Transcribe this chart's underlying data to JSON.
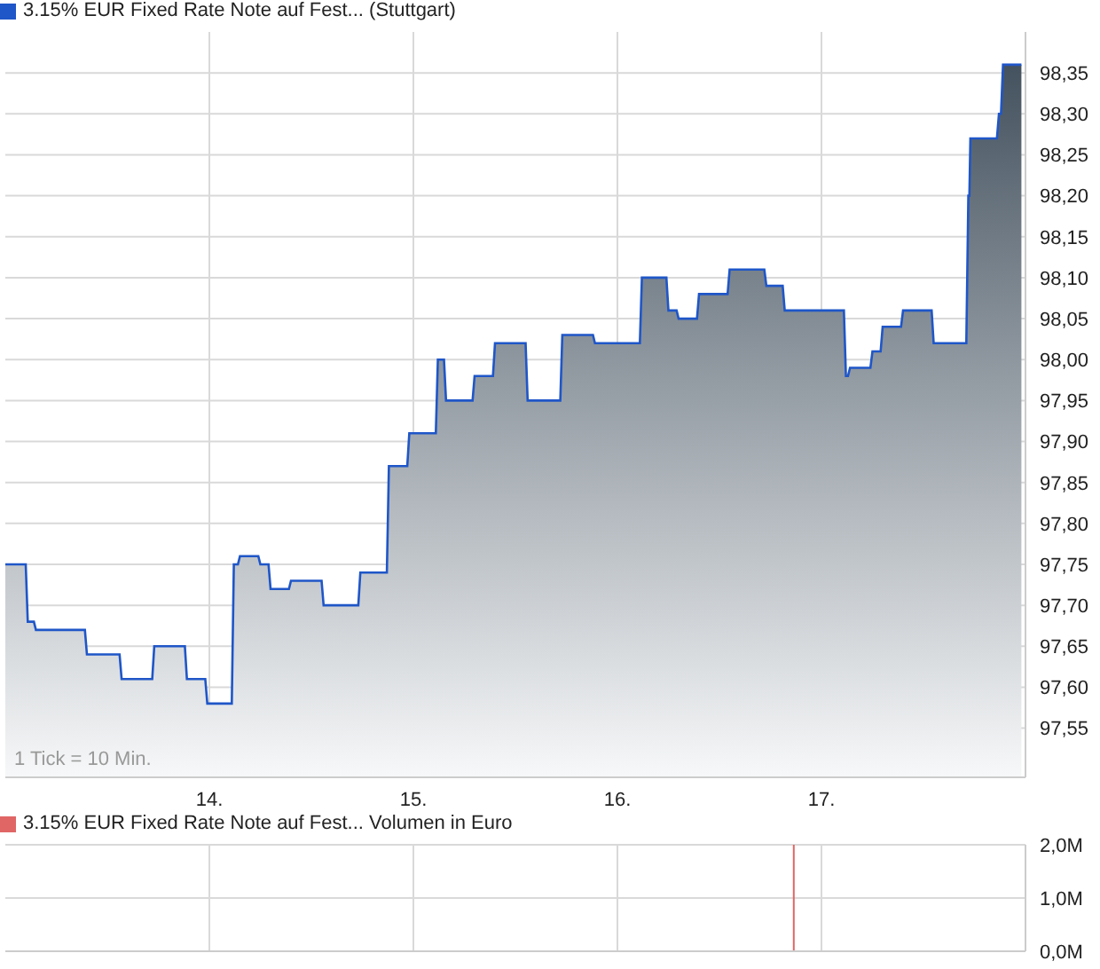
{
  "chart_data": [
    {
      "type": "area",
      "x": [
        13.0,
        13.1,
        13.11,
        13.14,
        13.15,
        13.39,
        13.4,
        13.56,
        13.57,
        13.72,
        13.73,
        13.88,
        13.89,
        13.98,
        13.99,
        14.11,
        14.12,
        14.14,
        14.15,
        14.24,
        14.25,
        14.29,
        14.3,
        14.39,
        14.4,
        14.55,
        14.56,
        14.73,
        14.74,
        14.87,
        14.88,
        14.97,
        14.98,
        15.11,
        15.12,
        15.15,
        15.16,
        15.29,
        15.3,
        15.39,
        15.4,
        15.55,
        15.56,
        15.72,
        15.73,
        15.88,
        15.89,
        16.11,
        16.12,
        16.24,
        16.25,
        16.29,
        16.3,
        16.39,
        16.4,
        16.54,
        16.55,
        16.72,
        16.73,
        16.81,
        16.82,
        17.11,
        17.12,
        17.13,
        17.14,
        17.24,
        17.25,
        17.29,
        17.3,
        17.39,
        17.4,
        17.54,
        17.55,
        17.71,
        17.72,
        17.725,
        17.73,
        17.86,
        17.87,
        17.88,
        17.89,
        17.98
      ],
      "series": [
        {
          "name": "3.15% EUR Fixed Rate Note auf Fest... (Stuttgart)",
          "color": "#1f56c8",
          "values": [
            97.75,
            97.75,
            97.68,
            97.68,
            97.67,
            97.67,
            97.64,
            97.64,
            97.61,
            97.61,
            97.65,
            97.65,
            97.61,
            97.61,
            97.58,
            97.58,
            97.75,
            97.75,
            97.76,
            97.76,
            97.75,
            97.75,
            97.72,
            97.72,
            97.73,
            97.73,
            97.7,
            97.7,
            97.74,
            97.74,
            97.87,
            97.87,
            97.91,
            97.91,
            98.0,
            98.0,
            97.95,
            97.95,
            97.98,
            97.98,
            98.02,
            98.02,
            97.95,
            97.95,
            98.03,
            98.03,
            98.02,
            98.02,
            98.1,
            98.1,
            98.06,
            98.06,
            98.05,
            98.05,
            98.08,
            98.08,
            98.11,
            98.11,
            98.09,
            98.09,
            98.06,
            98.06,
            97.98,
            97.98,
            97.99,
            97.99,
            98.01,
            98.01,
            98.04,
            98.04,
            98.06,
            98.06,
            98.02,
            98.02,
            98.2,
            98.2,
            98.27,
            98.27,
            98.3,
            98.3,
            98.36,
            98.36
          ]
        }
      ],
      "xlim": [
        13,
        18
      ],
      "xticks": [
        {
          "value": 14,
          "label": "14."
        },
        {
          "value": 15,
          "label": "15."
        },
        {
          "value": 16,
          "label": "16."
        },
        {
          "value": 17,
          "label": "17."
        }
      ],
      "ylim": [
        97.49,
        98.4
      ],
      "yticks": [
        {
          "value": 97.55,
          "label": "97,55"
        },
        {
          "value": 97.6,
          "label": "97,60"
        },
        {
          "value": 97.65,
          "label": "97,65"
        },
        {
          "value": 97.7,
          "label": "97,70"
        },
        {
          "value": 97.75,
          "label": "97,75"
        },
        {
          "value": 97.8,
          "label": "97,80"
        },
        {
          "value": 97.85,
          "label": "97,85"
        },
        {
          "value": 97.9,
          "label": "97,90"
        },
        {
          "value": 97.95,
          "label": "97,95"
        },
        {
          "value": 98.0,
          "label": "98,00"
        },
        {
          "value": 98.05,
          "label": "98,05"
        },
        {
          "value": 98.1,
          "label": "98,10"
        },
        {
          "value": 98.15,
          "label": "98,15"
        },
        {
          "value": 98.2,
          "label": "98,20"
        },
        {
          "value": 98.25,
          "label": "98,25"
        },
        {
          "value": 98.3,
          "label": "98,30"
        },
        {
          "value": 98.35,
          "label": "98,35"
        }
      ],
      "grid": true,
      "legend": "top left",
      "annotations": [
        "1 Tick = 10 Min."
      ]
    },
    {
      "type": "bar",
      "x": [
        16.86
      ],
      "series": [
        {
          "name": "3.15% EUR Fixed Rate Note auf Fest... Volumen in Euro",
          "color": "#e06666",
          "values": [
            2.0
          ]
        }
      ],
      "xlim": [
        13,
        18
      ],
      "xticks": [
        14,
        15,
        16,
        17
      ],
      "ylim": [
        0,
        2
      ],
      "yticks": [
        {
          "value": 0,
          "label": "0,0M"
        },
        {
          "value": 1,
          "label": "1,0M"
        },
        {
          "value": 2,
          "label": "2,0M"
        }
      ],
      "grid": true,
      "legend": "top left",
      "tick_labels": "y"
    }
  ]
}
